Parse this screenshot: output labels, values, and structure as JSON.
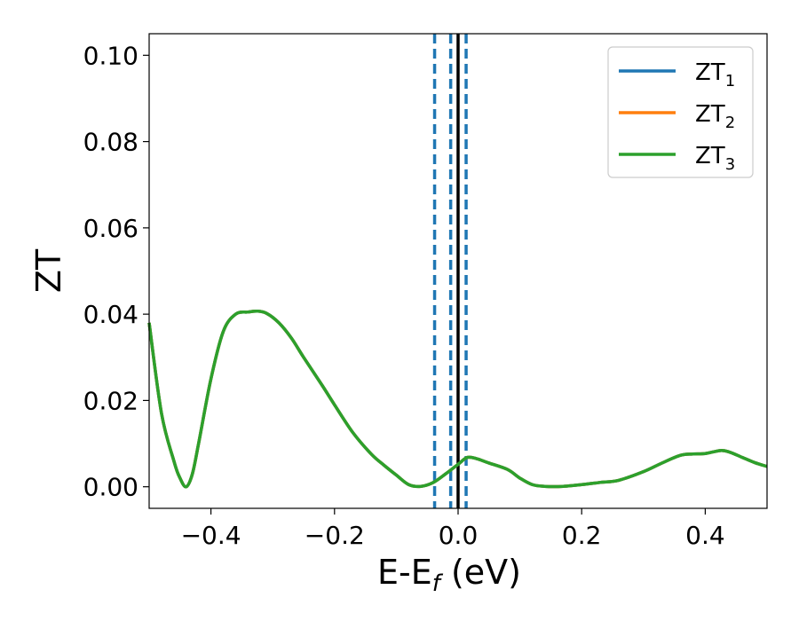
{
  "chart_data": {
    "type": "line",
    "xlabel": "E-E",
    "xlabel_sub": "f",
    "xlabel_unit": " (eV)",
    "ylabel": "ZT",
    "xlim": [
      -0.5,
      0.5
    ],
    "ylim": [
      -0.005,
      0.105
    ],
    "xticks": [
      -0.4,
      -0.2,
      0.0,
      0.2,
      0.4
    ],
    "xtick_labels": [
      "−0.4",
      "−0.2",
      "0.0",
      "0.2",
      "0.4"
    ],
    "yticks": [
      0.0,
      0.02,
      0.04,
      0.06,
      0.08,
      0.1
    ],
    "ytick_labels": [
      "0.00",
      "0.02",
      "0.04",
      "0.06",
      "0.08",
      "0.10"
    ],
    "grid": false,
    "legend_position": "top-right",
    "series": [
      {
        "name": "ZT",
        "name_sub": "1",
        "color": "#1f77b4",
        "x": [
          -0.5,
          -0.48,
          -0.46,
          -0.45,
          -0.44,
          -0.43,
          -0.42,
          -0.4,
          -0.38,
          -0.36,
          -0.34,
          -0.325,
          -0.31,
          -0.29,
          -0.27,
          -0.25,
          -0.22,
          -0.2,
          -0.17,
          -0.14,
          -0.12,
          -0.1,
          -0.08,
          -0.06,
          -0.04,
          -0.02,
          0.0,
          0.015,
          0.03,
          0.05,
          0.08,
          0.1,
          0.12,
          0.14,
          0.17,
          0.2,
          0.23,
          0.26,
          0.3,
          0.33,
          0.36,
          0.38,
          0.4,
          0.425,
          0.44,
          0.46,
          0.48,
          0.5
        ],
        "y": [
          0.038,
          0.017,
          0.006,
          0.002,
          0.0,
          0.003,
          0.01,
          0.025,
          0.036,
          0.04,
          0.0405,
          0.0407,
          0.0402,
          0.038,
          0.0345,
          0.03,
          0.0235,
          0.019,
          0.0125,
          0.0075,
          0.005,
          0.0027,
          0.0005,
          0.0001,
          0.001,
          0.003,
          0.0052,
          0.0068,
          0.0065,
          0.0055,
          0.004,
          0.002,
          0.0005,
          0.0001,
          0.0001,
          0.0005,
          0.001,
          0.0015,
          0.0035,
          0.0055,
          0.0073,
          0.0076,
          0.0077,
          0.0084,
          0.008,
          0.0068,
          0.0056,
          0.0047
        ]
      },
      {
        "name": "ZT",
        "name_sub": "2",
        "color": "#ff7f0e",
        "x": [
          -0.5,
          -0.48,
          -0.46,
          -0.45,
          -0.44,
          -0.43,
          -0.42,
          -0.4,
          -0.38,
          -0.36,
          -0.34,
          -0.325,
          -0.31,
          -0.29,
          -0.27,
          -0.25,
          -0.22,
          -0.2,
          -0.17,
          -0.14,
          -0.12,
          -0.1,
          -0.08,
          -0.06,
          -0.04,
          -0.02,
          0.0,
          0.015,
          0.03,
          0.05,
          0.08,
          0.1,
          0.12,
          0.14,
          0.17,
          0.2,
          0.23,
          0.26,
          0.3,
          0.33,
          0.36,
          0.38,
          0.4,
          0.425,
          0.44,
          0.46,
          0.48,
          0.5
        ],
        "y": [
          0.038,
          0.017,
          0.006,
          0.002,
          0.0,
          0.003,
          0.01,
          0.025,
          0.036,
          0.04,
          0.0405,
          0.0407,
          0.0402,
          0.038,
          0.0345,
          0.03,
          0.0235,
          0.019,
          0.0125,
          0.0075,
          0.005,
          0.0027,
          0.0005,
          0.0001,
          0.001,
          0.003,
          0.0052,
          0.0068,
          0.0065,
          0.0055,
          0.004,
          0.002,
          0.0005,
          0.0001,
          0.0001,
          0.0005,
          0.001,
          0.0015,
          0.0035,
          0.0055,
          0.0073,
          0.0076,
          0.0077,
          0.0084,
          0.008,
          0.0068,
          0.0056,
          0.0047
        ]
      },
      {
        "name": "ZT",
        "name_sub": "3",
        "color": "#2ca02c",
        "x": [
          -0.5,
          -0.48,
          -0.46,
          -0.45,
          -0.44,
          -0.43,
          -0.42,
          -0.4,
          -0.38,
          -0.36,
          -0.34,
          -0.325,
          -0.31,
          -0.29,
          -0.27,
          -0.25,
          -0.22,
          -0.2,
          -0.17,
          -0.14,
          -0.12,
          -0.1,
          -0.08,
          -0.06,
          -0.04,
          -0.02,
          0.0,
          0.015,
          0.03,
          0.05,
          0.08,
          0.1,
          0.12,
          0.14,
          0.17,
          0.2,
          0.23,
          0.26,
          0.3,
          0.33,
          0.36,
          0.38,
          0.4,
          0.425,
          0.44,
          0.46,
          0.48,
          0.5
        ],
        "y": [
          0.038,
          0.017,
          0.006,
          0.002,
          0.0,
          0.003,
          0.01,
          0.025,
          0.036,
          0.04,
          0.0405,
          0.0407,
          0.0402,
          0.038,
          0.0345,
          0.03,
          0.0235,
          0.019,
          0.0125,
          0.0075,
          0.005,
          0.0027,
          0.0005,
          0.0001,
          0.001,
          0.003,
          0.0052,
          0.0068,
          0.0065,
          0.0055,
          0.004,
          0.002,
          0.0005,
          0.0001,
          0.0001,
          0.0005,
          0.001,
          0.0015,
          0.0035,
          0.0055,
          0.0073,
          0.0076,
          0.0077,
          0.0084,
          0.008,
          0.0068,
          0.0056,
          0.0047
        ]
      }
    ],
    "vlines": [
      {
        "x": -0.038,
        "style": "dashed",
        "color": "#1f77b4"
      },
      {
        "x": -0.012,
        "style": "dashed",
        "color": "#1f77b4"
      },
      {
        "x": 0.0,
        "style": "solid",
        "color": "#000000"
      },
      {
        "x": 0.013,
        "style": "dashed",
        "color": "#1f77b4"
      }
    ]
  }
}
